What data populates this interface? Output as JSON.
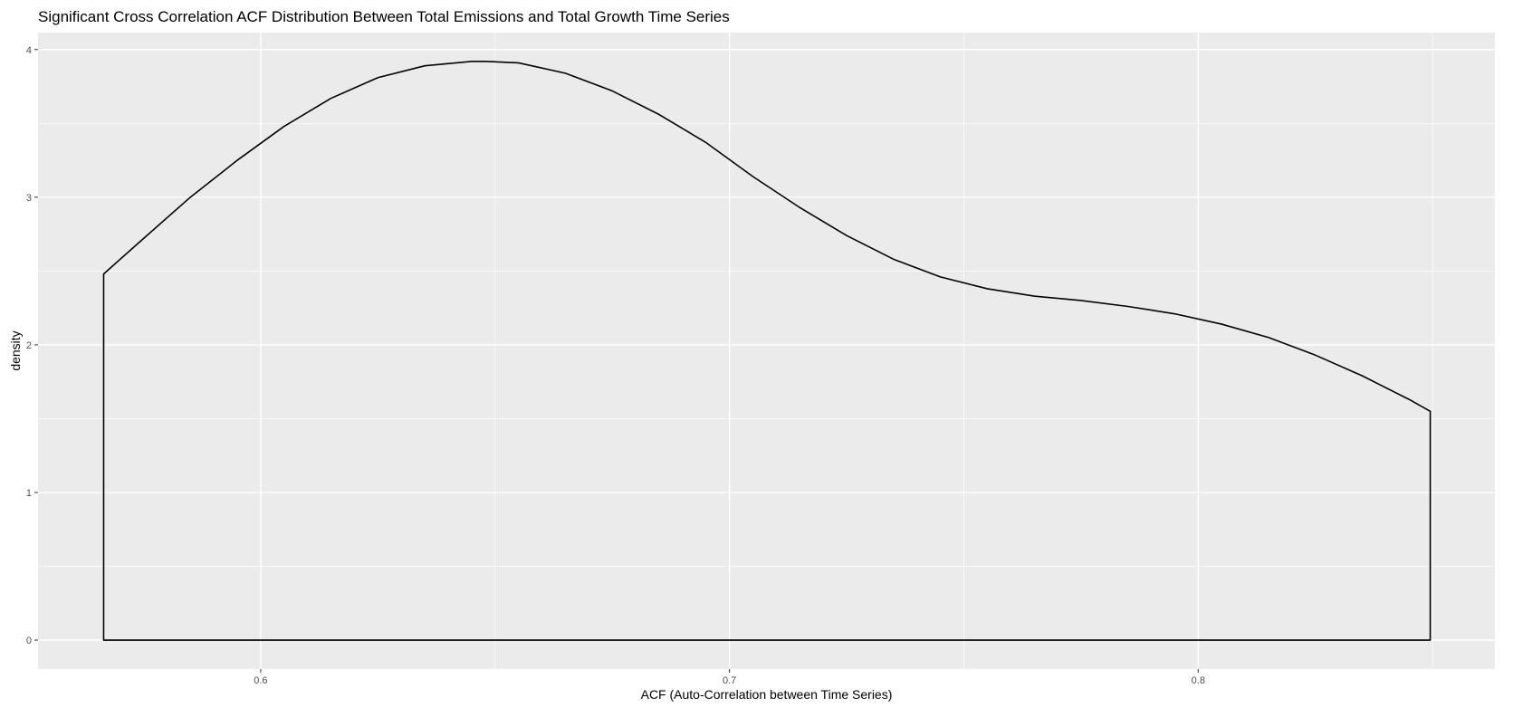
{
  "chart_data": {
    "type": "area",
    "title": "Significant Cross Correlation ACF Distribution Between Total Emissions and Total Growth Time Series",
    "xlabel": "ACF (Auto-Correlation between Time Series)",
    "ylabel": "density",
    "xlim": [
      0.5525,
      0.8633
    ],
    "ylim": [
      -0.196,
      4.115
    ],
    "x_ticks": [
      0.6,
      0.7,
      0.8
    ],
    "x_tick_labels": [
      "0.6",
      "0.7",
      "0.8"
    ],
    "y_ticks": [
      0,
      1,
      2,
      3,
      4
    ],
    "y_tick_labels": [
      "0",
      "1",
      "2",
      "3",
      "4"
    ],
    "grid": true,
    "panel_background": "#ebebeb",
    "grid_color": "#ffffff",
    "line_color": "#000000",
    "series": [
      {
        "x": [
          0.5665,
          0.575,
          0.585,
          0.595,
          0.605,
          0.615,
          0.625,
          0.635,
          0.645,
          0.648,
          0.655,
          0.665,
          0.675,
          0.685,
          0.695,
          0.705,
          0.715,
          0.725,
          0.735,
          0.745,
          0.755,
          0.765,
          0.775,
          0.785,
          0.795,
          0.805,
          0.815,
          0.825,
          0.835,
          0.845,
          0.8495
        ],
        "y": [
          2.48,
          2.72,
          3.0,
          3.25,
          3.48,
          3.67,
          3.81,
          3.89,
          3.92,
          3.92,
          3.91,
          3.84,
          3.72,
          3.56,
          3.37,
          3.14,
          2.93,
          2.74,
          2.58,
          2.46,
          2.38,
          2.33,
          2.3,
          2.26,
          2.21,
          2.14,
          2.05,
          1.93,
          1.79,
          1.63,
          1.55
        ]
      }
    ]
  }
}
